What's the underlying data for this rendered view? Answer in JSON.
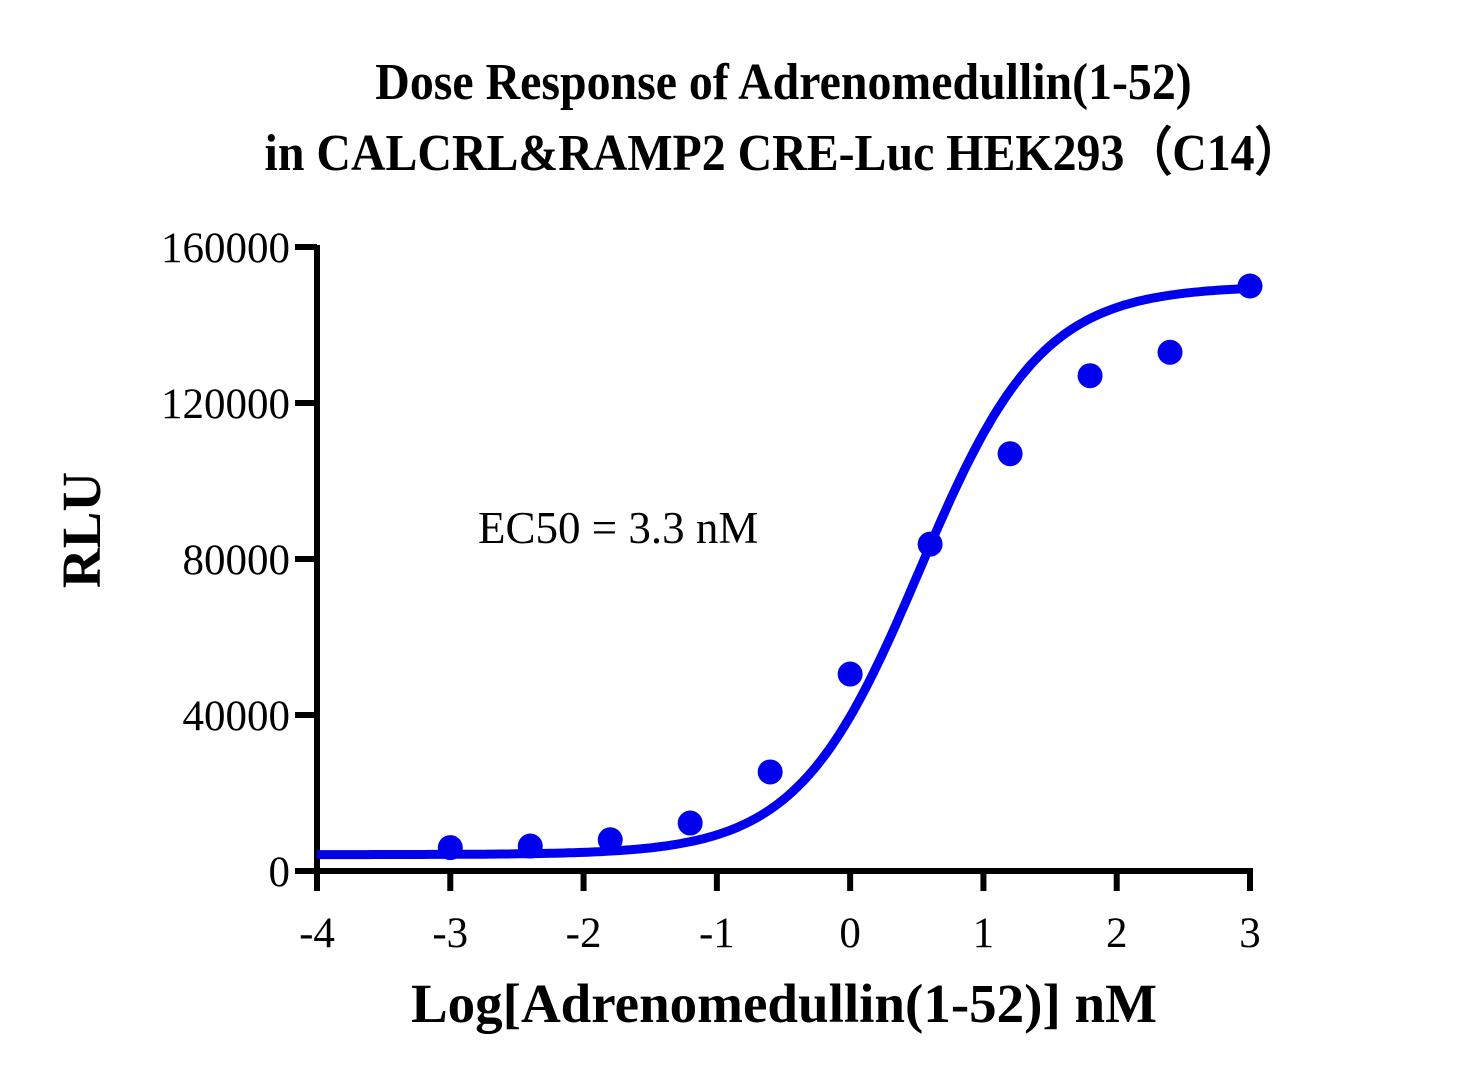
{
  "chart_data": {
    "type": "scatter",
    "title": "Dose Response of Adrenomedullin(1-52) in CALCRL&RAMP2 CRE-Luc HEK293（C14）",
    "title_lines": [
      "Dose Response of Adrenomedullin(1-52)",
      "in CALCRL&RAMP2 CRE-Luc HEK293（C14）"
    ],
    "xlabel": "Log[Adrenomedullin(1-52)] nM",
    "ylabel": "RLU",
    "xlim": [
      -4,
      3
    ],
    "ylim": [
      0,
      160000
    ],
    "xticks": [
      "-4",
      "-3",
      "-2",
      "-1",
      "0",
      "1",
      "2",
      "3"
    ],
    "yticks": [
      "0",
      "40000",
      "80000",
      "120000",
      "160000"
    ],
    "grid": false,
    "legend": null,
    "annotation": "EC50 = 3.3 nM",
    "color": "#0000ee",
    "series": [
      {
        "name": "Adrenomedullin(1-52)",
        "x": [
          -3.0,
          -2.4,
          -1.8,
          -1.2,
          -0.6,
          0.0,
          0.6,
          1.2,
          1.8,
          2.4,
          3.0
        ],
        "values": [
          6000,
          6400,
          8000,
          12300,
          25400,
          50500,
          83800,
          107000,
          127000,
          133000,
          150000
        ]
      }
    ],
    "fit": {
      "model": "4PL",
      "bottom": 4200,
      "top": 150000,
      "logEC50": 0.52,
      "hill": 0.95
    }
  }
}
